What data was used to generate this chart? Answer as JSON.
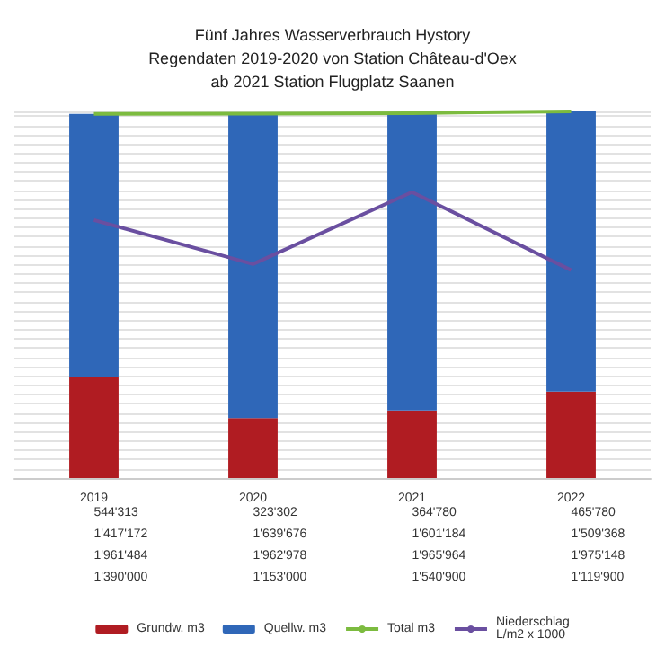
{
  "chart_data": {
    "type": "bar",
    "title": "Fünf Jahres Wasserverbrauch Hystory\nRegendaten 2019-2020 von Station Château-d'Oex\nab 2021 Station Flugplatz Saanen",
    "categories": [
      "2019",
      "2020",
      "2021",
      "2022"
    ],
    "stacked": true,
    "grid": "y",
    "tick_labels": "x",
    "legend": "bottom",
    "data_labels": true,
    "series": [
      {
        "name": "Grundw. m3",
        "color": "#b01c22",
        "values": [
          544313,
          323302,
          364780,
          465780
        ],
        "value_labels": [
          "544'313",
          "323'302",
          "364'780",
          "465'780"
        ]
      },
      {
        "name": "Quellw. m3",
        "color": "#2f67b8",
        "values": [
          1417172,
          1639676,
          1601184,
          1509368
        ],
        "value_labels": [
          "1'417'172",
          "1'639'676",
          "1'601'184",
          "1'509'368"
        ]
      },
      {
        "name": "Total m3",
        "type": "line",
        "color": "#7cbb3f",
        "values": [
          1961484,
          1962978,
          1965964,
          1975148
        ],
        "value_labels": [
          "1'961'484",
          "1'962'978",
          "1'965'964",
          "1'975'148"
        ]
      },
      {
        "name": "Niederschlag\nL/m2 x 1000",
        "type": "line",
        "color": "#6a4fa0",
        "values": [
          1390000,
          1153000,
          1540900,
          1119900
        ],
        "value_labels": [
          "1'390'000",
          "1'153'000",
          "1'540'900",
          "1'119'900"
        ]
      }
    ]
  }
}
